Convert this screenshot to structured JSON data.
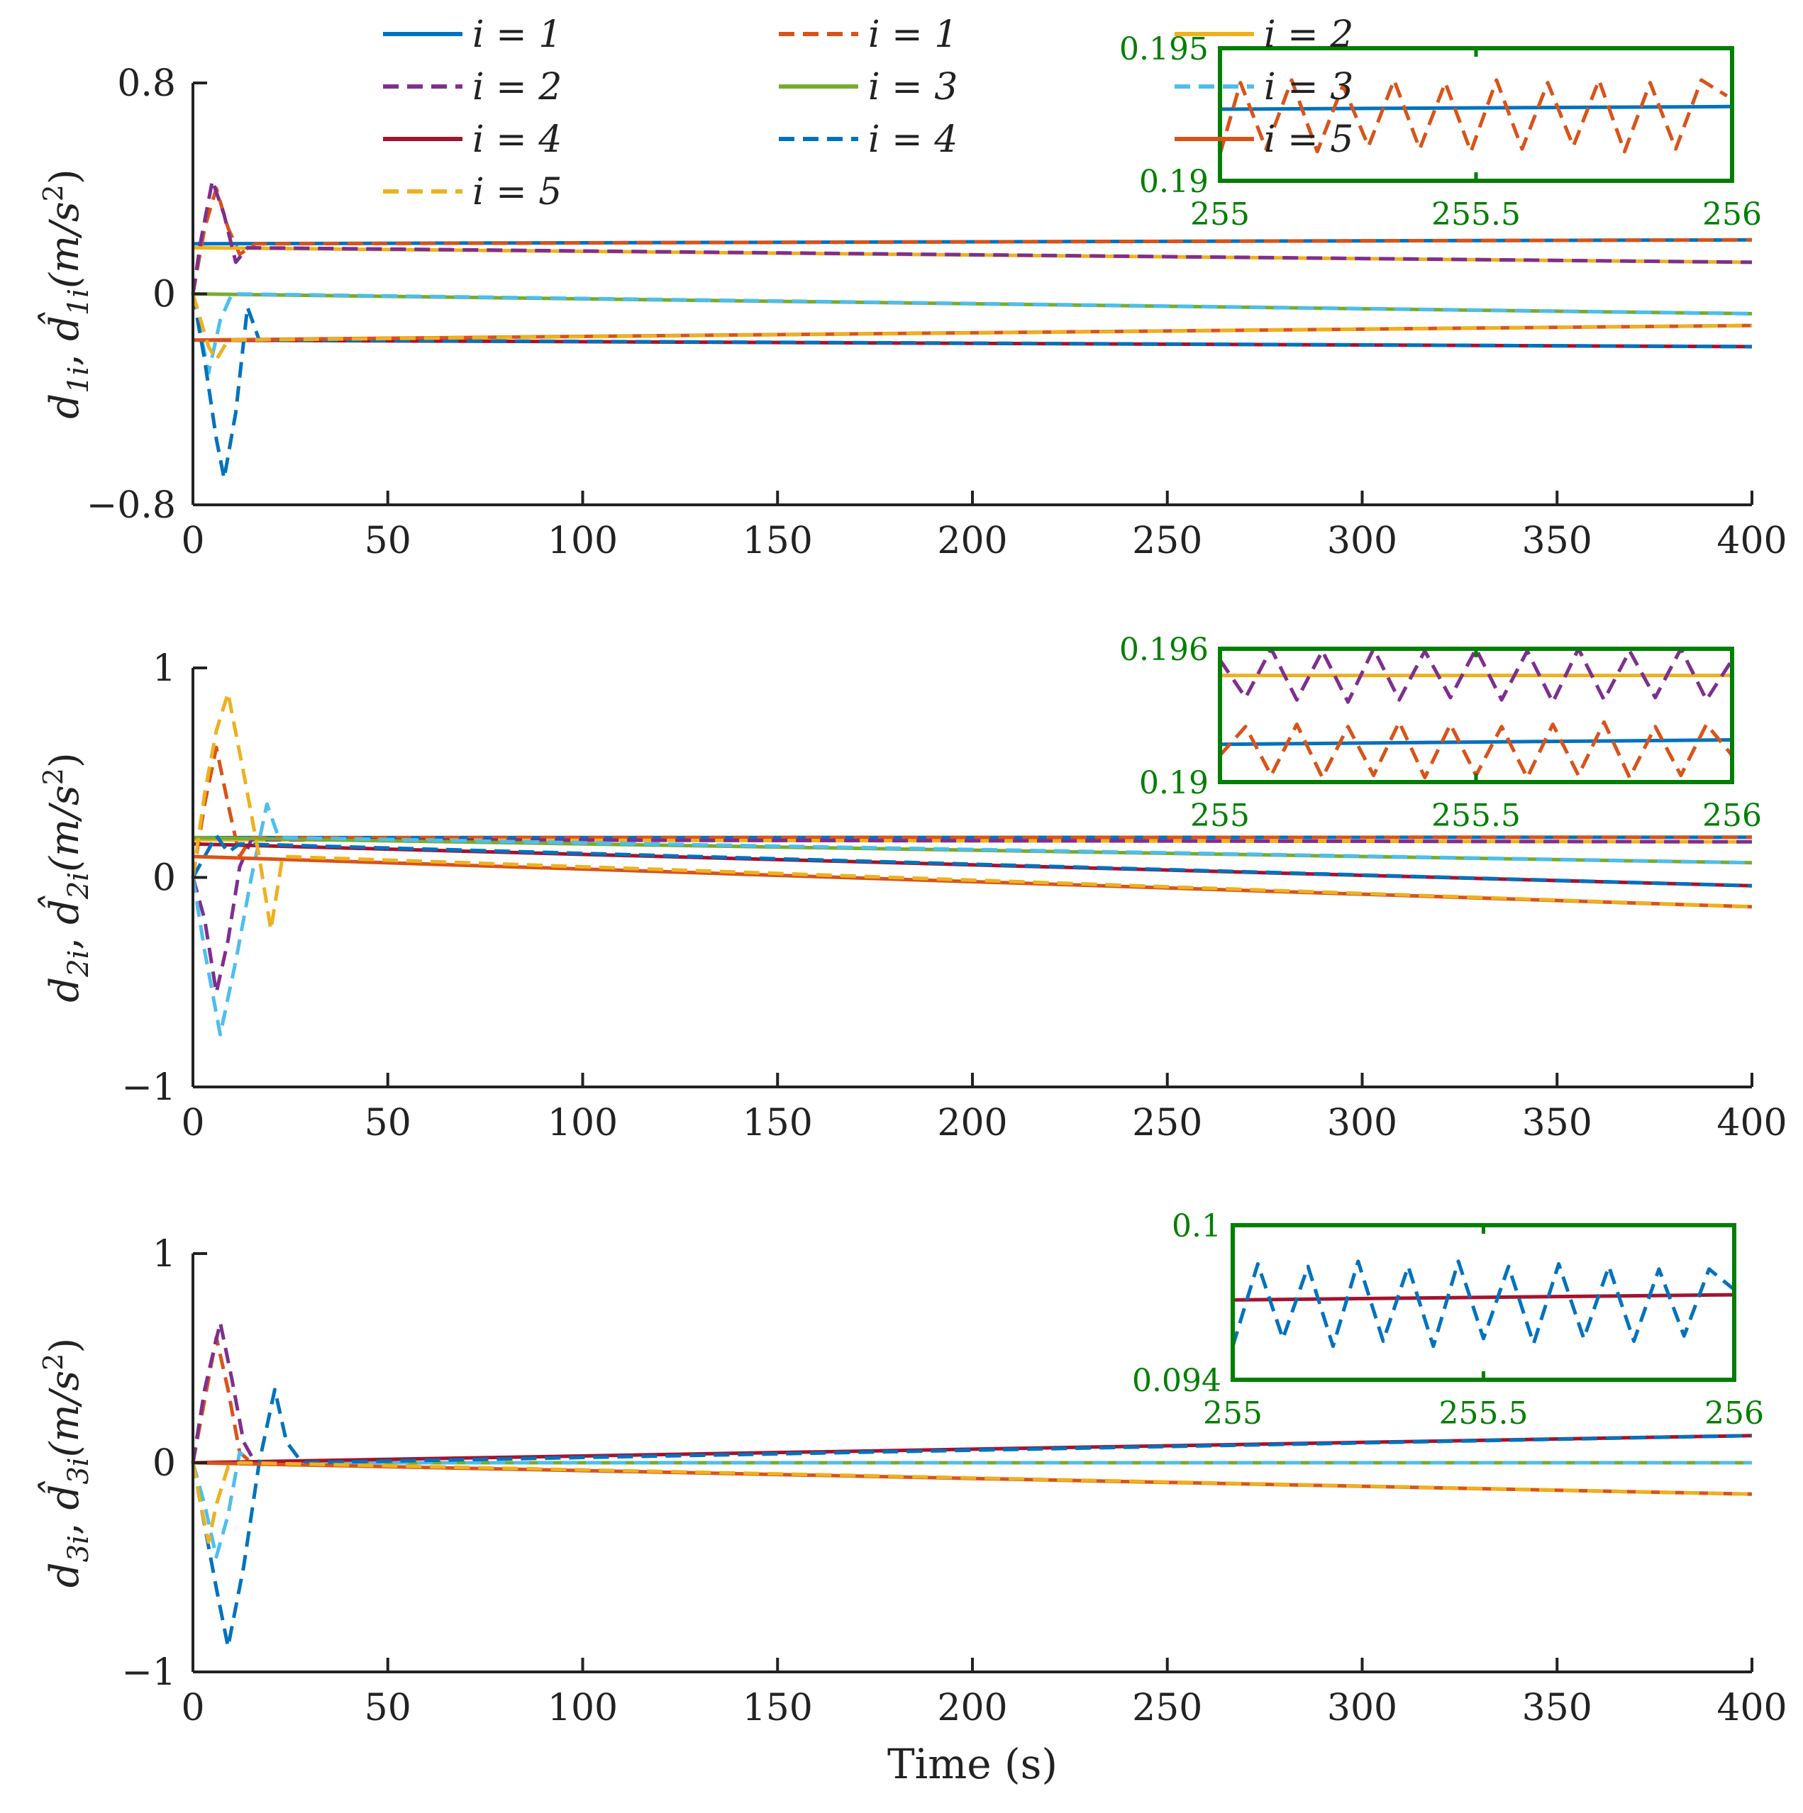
{
  "colors": {
    "blue": "#0072BD",
    "orange": "#D95319",
    "yellow": "#EDB120",
    "purple": "#7E2F8E",
    "green": "#77AC30",
    "cyan": "#4DBEEE",
    "crimson": "#A2142F",
    "inset_frame": "#007F00",
    "axis": "#222222"
  },
  "legend": {
    "columns": 3,
    "entries": [
      {
        "label": "i = 1",
        "color": "#0072BD",
        "dash": false
      },
      {
        "label": "i = 1",
        "color": "#D95319",
        "dash": true
      },
      {
        "label": "i = 2",
        "color": "#EDB120",
        "dash": false
      },
      {
        "label": "i = 2",
        "color": "#7E2F8E",
        "dash": true
      },
      {
        "label": "i = 3",
        "color": "#77AC30",
        "dash": false
      },
      {
        "label": "i = 3",
        "color": "#4DBEEE",
        "dash": true
      },
      {
        "label": "i = 4",
        "color": "#A2142F",
        "dash": false
      },
      {
        "label": "i = 4",
        "color": "#0072BD",
        "dash": true
      },
      {
        "label": "i = 5",
        "color": "#D95319",
        "dash": false
      },
      {
        "label": "i = 5",
        "color": "#EDB120",
        "dash": true
      }
    ]
  },
  "chart_data": [
    {
      "type": "line",
      "title": "",
      "xlabel": "",
      "ylabel": "d1i, d̂1i(m/s²)",
      "ylabel_parts": {
        "d": "d",
        "sub": "1i",
        "comma": ", ",
        "hat": "d̂",
        "unit_open": "(m/s",
        "sup": "2",
        "unit_close": ")"
      },
      "xlim": [
        0,
        400
      ],
      "ylim": [
        -0.8,
        0.8
      ],
      "xticks": [
        0,
        50,
        100,
        150,
        200,
        250,
        300,
        350,
        400
      ],
      "yticks": [
        {
          "v": 0.8,
          "label": "0.8"
        },
        {
          "v": 0,
          "label": "0"
        },
        {
          "v": -0.8,
          "label": "−0.8"
        }
      ],
      "series": [
        {
          "name": "d, i = 1",
          "color": "#0072BD",
          "dash": false,
          "x": [
            0,
            400
          ],
          "y": [
            0.19,
            0.205
          ]
        },
        {
          "name": "d̂, i = 1",
          "color": "#D95319",
          "dash": true,
          "x": [
            0,
            3,
            6,
            9,
            12,
            16,
            400
          ],
          "y": [
            0.0,
            0.25,
            0.4,
            0.25,
            0.15,
            0.19,
            0.205
          ]
        },
        {
          "name": "d, i = 2",
          "color": "#EDB120",
          "dash": false,
          "x": [
            0,
            400
          ],
          "y": [
            0.175,
            0.12
          ]
        },
        {
          "name": "d̂, i = 2",
          "color": "#7E2F8E",
          "dash": true,
          "x": [
            0,
            2,
            5,
            8,
            11,
            14,
            400
          ],
          "y": [
            0.0,
            0.2,
            0.43,
            0.3,
            0.12,
            0.175,
            0.12
          ]
        },
        {
          "name": "d, i = 3",
          "color": "#77AC30",
          "dash": false,
          "x": [
            0,
            400
          ],
          "y": [
            0.0,
            -0.075
          ]
        },
        {
          "name": "d̂, i = 3",
          "color": "#4DBEEE",
          "dash": true,
          "x": [
            0,
            2,
            4,
            7,
            10,
            400
          ],
          "y": [
            0.0,
            -0.15,
            -0.3,
            -0.1,
            0.0,
            -0.075
          ]
        },
        {
          "name": "d, i = 4",
          "color": "#A2142F",
          "dash": false,
          "x": [
            0,
            400
          ],
          "y": [
            -0.175,
            -0.2
          ]
        },
        {
          "name": "d̂, i = 4",
          "color": "#0072BD",
          "dash": true,
          "x": [
            0,
            3,
            6,
            8,
            11,
            14,
            17,
            20,
            400
          ],
          "y": [
            0.0,
            -0.25,
            -0.55,
            -0.7,
            -0.45,
            -0.05,
            -0.175,
            -0.175,
            -0.2
          ]
        },
        {
          "name": "d, i = 5",
          "color": "#D95319",
          "dash": false,
          "x": [
            0,
            400
          ],
          "y": [
            -0.175,
            -0.12
          ]
        },
        {
          "name": "d̂, i = 5",
          "color": "#EDB120",
          "dash": true,
          "x": [
            0,
            2,
            4,
            6,
            9,
            400
          ],
          "y": [
            0.0,
            -0.1,
            -0.2,
            -0.25,
            -0.175,
            -0.12
          ]
        }
      ],
      "inset": {
        "xlim": [
          255,
          256
        ],
        "ylim": [
          0.19,
          0.195
        ],
        "xticks": [
          255,
          255.5,
          256
        ],
        "xtick_labels": [
          "255",
          "255.5",
          "256"
        ],
        "yticks": [
          0.195,
          0.19
        ],
        "ytick_labels": [
          "0.195",
          "0.19"
        ],
        "series": [
          {
            "color": "#0072BD",
            "dash": false,
            "x": [
              255,
              256
            ],
            "y": [
              0.1927,
              0.1928
            ]
          },
          {
            "color": "#D95319",
            "dash": true,
            "x": [
              255,
              255.04,
              255.09,
              255.14,
              255.19,
              255.24,
              255.29,
              255.34,
              255.39,
              255.44,
              255.49,
              255.54,
              255.59,
              255.64,
              255.69,
              255.74,
              255.79,
              255.84,
              255.89,
              255.94,
              255.99
            ],
            "y": [
              0.191,
              0.1937,
              0.1912,
              0.1938,
              0.1911,
              0.1936,
              0.1913,
              0.1938,
              0.1912,
              0.1937,
              0.1911,
              0.1938,
              0.1912,
              0.1937,
              0.1913,
              0.1938,
              0.1911,
              0.1937,
              0.1912,
              0.1938,
              0.1932
            ]
          }
        ]
      }
    },
    {
      "type": "line",
      "title": "",
      "xlabel": "",
      "ylabel": "d2i, d̂2i(m/s²)",
      "ylabel_parts": {
        "d": "d",
        "sub": "2i",
        "comma": ", ",
        "hat": "d̂",
        "unit_open": "(m/s",
        "sup": "2",
        "unit_close": ")"
      },
      "xlim": [
        0,
        400
      ],
      "ylim": [
        -1,
        1
      ],
      "xticks": [
        0,
        50,
        100,
        150,
        200,
        250,
        300,
        350,
        400
      ],
      "yticks": [
        {
          "v": 1,
          "label": "1"
        },
        {
          "v": 0,
          "label": "0"
        },
        {
          "v": -1,
          "label": "−1"
        }
      ],
      "series": [
        {
          "name": "d, i = 1",
          "color": "#0072BD",
          "dash": false,
          "x": [
            0,
            400
          ],
          "y": [
            0.19,
            0.192
          ]
        },
        {
          "name": "d̂, i = 1",
          "color": "#D95319",
          "dash": true,
          "x": [
            0,
            3,
            6,
            9,
            12,
            15,
            400
          ],
          "y": [
            0.0,
            0.35,
            0.62,
            0.35,
            0.1,
            0.19,
            0.192
          ]
        },
        {
          "name": "d, i = 2",
          "color": "#EDB120",
          "dash": false,
          "x": [
            0,
            400
          ],
          "y": [
            0.18,
            0.17
          ]
        },
        {
          "name": "d̂, i = 2",
          "color": "#7E2F8E",
          "dash": true,
          "x": [
            0,
            3,
            6,
            9,
            12,
            15,
            400
          ],
          "y": [
            0.0,
            -0.2,
            -0.55,
            -0.3,
            0.05,
            0.18,
            0.17
          ]
        },
        {
          "name": "d, i = 3",
          "color": "#77AC30",
          "dash": false,
          "x": [
            0,
            400
          ],
          "y": [
            0.19,
            0.07
          ]
        },
        {
          "name": "d̂, i = 3",
          "color": "#4DBEEE",
          "dash": true,
          "x": [
            0,
            3,
            7,
            11,
            15,
            19,
            22,
            400
          ],
          "y": [
            0.0,
            -0.35,
            -0.75,
            -0.4,
            0.0,
            0.35,
            0.19,
            0.07
          ]
        },
        {
          "name": "d, i = 4",
          "color": "#A2142F",
          "dash": false,
          "x": [
            0,
            400
          ],
          "y": [
            0.16,
            -0.04
          ]
        },
        {
          "name": "d̂, i = 4",
          "color": "#0072BD",
          "dash": true,
          "x": [
            0,
            3,
            6,
            9,
            12,
            400
          ],
          "y": [
            0.0,
            0.1,
            0.2,
            0.12,
            0.16,
            -0.04
          ]
        },
        {
          "name": "d, i = 5",
          "color": "#D95319",
          "dash": false,
          "x": [
            0,
            400
          ],
          "y": [
            0.1,
            -0.14
          ]
        },
        {
          "name": "d̂, i = 5",
          "color": "#EDB120",
          "dash": true,
          "x": [
            0,
            3,
            6,
            9,
            13,
            17,
            20,
            23,
            400
          ],
          "y": [
            0.0,
            0.4,
            0.7,
            0.88,
            0.5,
            0.1,
            -0.25,
            0.1,
            -0.14
          ]
        }
      ],
      "inset": {
        "xlim": [
          255,
          256
        ],
        "ylim": [
          0.19,
          0.196
        ],
        "xticks": [
          255,
          255.5,
          256
        ],
        "xtick_labels": [
          "255",
          "255.5",
          "256"
        ],
        "yticks": [
          0.196,
          0.19
        ],
        "ytick_labels": [
          "0.196",
          "0.19"
        ],
        "series": [
          {
            "color": "#EDB120",
            "dash": false,
            "x": [
              255,
              256
            ],
            "y": [
              0.1948,
              0.1948
            ]
          },
          {
            "color": "#0072BD",
            "dash": false,
            "x": [
              255,
              256
            ],
            "y": [
              0.1917,
              0.1919
            ]
          },
          {
            "color": "#7E2F8E",
            "dash": true,
            "x": [
              255,
              255.05,
              255.1,
              255.15,
              255.2,
              255.25,
              255.3,
              255.35,
              255.4,
              255.45,
              255.5,
              255.55,
              255.6,
              255.65,
              255.7,
              255.75,
              255.8,
              255.85,
              255.9,
              255.95,
              256
            ],
            "y": [
              0.1955,
              0.1938,
              0.196,
              0.1937,
              0.1959,
              0.1936,
              0.196,
              0.1937,
              0.1959,
              0.1938,
              0.196,
              0.1937,
              0.1959,
              0.1936,
              0.196,
              0.1937,
              0.1959,
              0.1938,
              0.196,
              0.1937,
              0.1955
            ]
          },
          {
            "color": "#D95319",
            "dash": true,
            "x": [
              255,
              255.05,
              255.1,
              255.15,
              255.2,
              255.25,
              255.3,
              255.35,
              255.4,
              255.45,
              255.5,
              255.55,
              255.6,
              255.65,
              255.7,
              255.75,
              255.8,
              255.85,
              255.9,
              255.95,
              256
            ],
            "y": [
              0.1912,
              0.1925,
              0.1903,
              0.1926,
              0.1902,
              0.1925,
              0.1903,
              0.1927,
              0.1902,
              0.1926,
              0.1903,
              0.1925,
              0.1902,
              0.1926,
              0.1903,
              0.1927,
              0.1902,
              0.1925,
              0.1903,
              0.1926,
              0.1912
            ]
          }
        ]
      }
    },
    {
      "type": "line",
      "title": "",
      "xlabel": "Time (s)",
      "ylabel": "d3i, d̂3i(m/s²)",
      "ylabel_parts": {
        "d": "d",
        "sub": "3i",
        "comma": ", ",
        "hat": "d̂",
        "unit_open": "(m/s",
        "sup": "2",
        "unit_close": ")"
      },
      "xlim": [
        0,
        400
      ],
      "ylim": [
        -1,
        1
      ],
      "xticks": [
        0,
        50,
        100,
        150,
        200,
        250,
        300,
        350,
        400
      ],
      "yticks": [
        {
          "v": 1,
          "label": "1"
        },
        {
          "v": 0,
          "label": "0"
        },
        {
          "v": -1,
          "label": "−1"
        }
      ],
      "series": [
        {
          "name": "d, i = 1",
          "color": "#0072BD",
          "dash": false,
          "x": [
            0,
            400
          ],
          "y": [
            0.0,
            0.0
          ]
        },
        {
          "name": "d̂, i = 1",
          "color": "#D95319",
          "dash": true,
          "x": [
            0,
            3,
            6,
            9,
            12,
            15,
            400
          ],
          "y": [
            0.0,
            0.3,
            0.6,
            0.35,
            0.05,
            0.0,
            0.0
          ]
        },
        {
          "name": "d, i = 2",
          "color": "#EDB120",
          "dash": false,
          "x": [
            0,
            400
          ],
          "y": [
            0.0,
            0.0
          ]
        },
        {
          "name": "d̂, i = 2",
          "color": "#7E2F8E",
          "dash": true,
          "x": [
            0,
            3,
            7,
            10,
            13,
            16,
            400
          ],
          "y": [
            0.0,
            0.35,
            0.67,
            0.4,
            0.1,
            0.0,
            0.0
          ]
        },
        {
          "name": "d, i = 3",
          "color": "#77AC30",
          "dash": false,
          "x": [
            0,
            400
          ],
          "y": [
            0.0,
            0.0
          ]
        },
        {
          "name": "d̂, i = 3",
          "color": "#4DBEEE",
          "dash": true,
          "x": [
            0,
            3,
            6,
            9,
            12,
            15,
            400
          ],
          "y": [
            0.0,
            -0.2,
            -0.45,
            -0.25,
            0.05,
            0.0,
            0.0
          ]
        },
        {
          "name": "d, i = 4",
          "color": "#A2142F",
          "dash": false,
          "x": [
            0,
            400
          ],
          "y": [
            0.0,
            0.13
          ]
        },
        {
          "name": "d̂, i = 4",
          "color": "#0072BD",
          "dash": true,
          "x": [
            0,
            3,
            6,
            9,
            13,
            17,
            21,
            24,
            28,
            400
          ],
          "y": [
            0.0,
            -0.3,
            -0.6,
            -0.88,
            -0.5,
            0.0,
            0.35,
            0.1,
            0.0,
            0.13
          ]
        },
        {
          "name": "d, i = 5",
          "color": "#D95319",
          "dash": false,
          "x": [
            0,
            400
          ],
          "y": [
            0.0,
            -0.15
          ]
        },
        {
          "name": "d̂, i = 5",
          "color": "#EDB120",
          "dash": true,
          "x": [
            0,
            2,
            4,
            6,
            9,
            12,
            400
          ],
          "y": [
            0.0,
            -0.2,
            -0.38,
            -0.2,
            -0.02,
            0.0,
            -0.15
          ]
        }
      ],
      "inset": {
        "xlim": [
          255,
          256
        ],
        "ylim": [
          0.094,
          0.1
        ],
        "xticks": [
          255,
          255.5,
          256
        ],
        "xtick_labels": [
          "255",
          "255.5",
          "256"
        ],
        "yticks": [
          0.1,
          0.094
        ],
        "ytick_labels": [
          "0.1",
          "0.094"
        ],
        "series": [
          {
            "color": "#A2142F",
            "dash": false,
            "x": [
              255,
              256
            ],
            "y": [
              0.0971,
              0.0973
            ]
          },
          {
            "color": "#0072BD",
            "dash": true,
            "x": [
              255,
              255.05,
              255.1,
              255.15,
              255.2,
              255.25,
              255.3,
              255.35,
              255.4,
              255.45,
              255.5,
              255.55,
              255.6,
              255.65,
              255.7,
              255.75,
              255.8,
              255.85,
              255.9,
              255.95,
              256
            ],
            "y": [
              0.0953,
              0.0985,
              0.0956,
              0.0984,
              0.0953,
              0.0986,
              0.0955,
              0.0984,
              0.0953,
              0.0986,
              0.0956,
              0.0984,
              0.0954,
              0.0985,
              0.0956,
              0.0984,
              0.0955,
              0.0983,
              0.0957,
              0.0983,
              0.0975
            ]
          }
        ]
      }
    }
  ]
}
